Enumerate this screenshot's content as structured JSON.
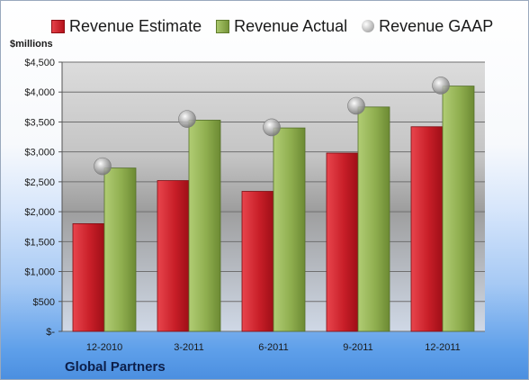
{
  "legend": {
    "estimate_label": "Revenue Estimate",
    "actual_label": "Revenue Actual",
    "gaap_label": "Revenue GAAP"
  },
  "unit_label": "$millions",
  "company": "Global Partners",
  "colors": {
    "estimate": "#c8202a",
    "actual": "#8fae4f",
    "gaap": "#b0b0b0"
  },
  "chart_data": {
    "type": "bar",
    "title": "",
    "xlabel": "",
    "ylabel": "$millions",
    "categories": [
      "12-2010",
      "3-2011",
      "6-2011",
      "9-2011",
      "12-2011"
    ],
    "series": [
      {
        "name": "Revenue Estimate",
        "values": [
          1800,
          2520,
          2340,
          2980,
          3420
        ]
      },
      {
        "name": "Revenue Actual",
        "values": [
          2730,
          3530,
          3400,
          3750,
          4100
        ]
      },
      {
        "name": "Revenue GAAP",
        "marker": "circle",
        "values": [
          2760,
          3550,
          3410,
          3770,
          4110
        ]
      }
    ],
    "ylim": [
      0,
      4500
    ],
    "yticks": [
      0,
      500,
      1000,
      1500,
      2000,
      2500,
      3000,
      3500,
      4000,
      4500
    ],
    "ytick_labels": [
      "$-",
      "$500",
      "$1,000",
      "$1,500",
      "$2,000",
      "$2,500",
      "$3,000",
      "$3,500",
      "$4,000",
      "$4,500"
    ],
    "grid": true,
    "legend_position": "top"
  }
}
